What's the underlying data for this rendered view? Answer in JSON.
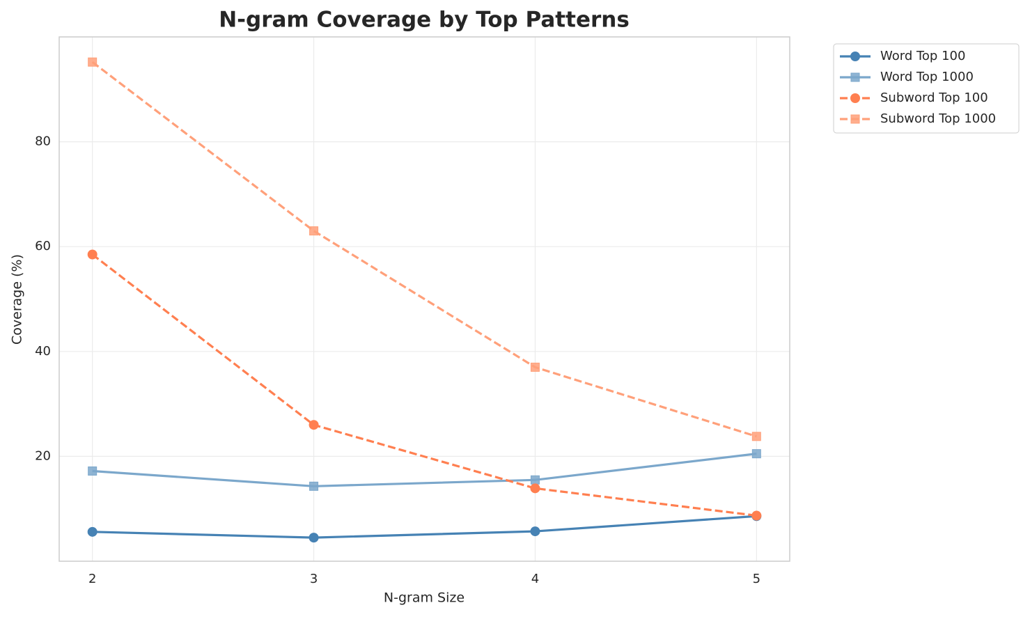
{
  "chart_data": {
    "type": "line",
    "title": "N-gram Coverage by Top Patterns",
    "x_label": "N-gram Size",
    "y_label": "Coverage (%)",
    "x": [
      2,
      3,
      4,
      5
    ],
    "series": [
      {
        "name": "Word Top 100",
        "color": "#4682b4",
        "marker": "circle",
        "linestyle": "solid",
        "values": [
          5.6,
          4.5,
          5.7,
          8.6
        ]
      },
      {
        "name": "Word Top 1000",
        "color": "#7ba7cb",
        "marker": "square",
        "linestyle": "solid",
        "values": [
          17.2,
          14.3,
          15.5,
          20.5
        ]
      },
      {
        "name": "Subword Top 100",
        "color": "#ff7f50",
        "marker": "circle",
        "linestyle": "dashed",
        "values": [
          58.5,
          26.0,
          13.9,
          8.7
        ]
      },
      {
        "name": "Subword Top 1000",
        "color": "#ffa07a",
        "marker": "square",
        "linestyle": "dashed",
        "values": [
          95.2,
          63.0,
          37.0,
          23.8
        ]
      }
    ],
    "xlim": [
      1.85,
      5.15
    ],
    "xticks": [
      2,
      3,
      4,
      5
    ],
    "ylim": [
      0,
      100
    ],
    "yticks": [
      20,
      40,
      60,
      80
    ],
    "grid": true,
    "legend": "outside-right"
  }
}
